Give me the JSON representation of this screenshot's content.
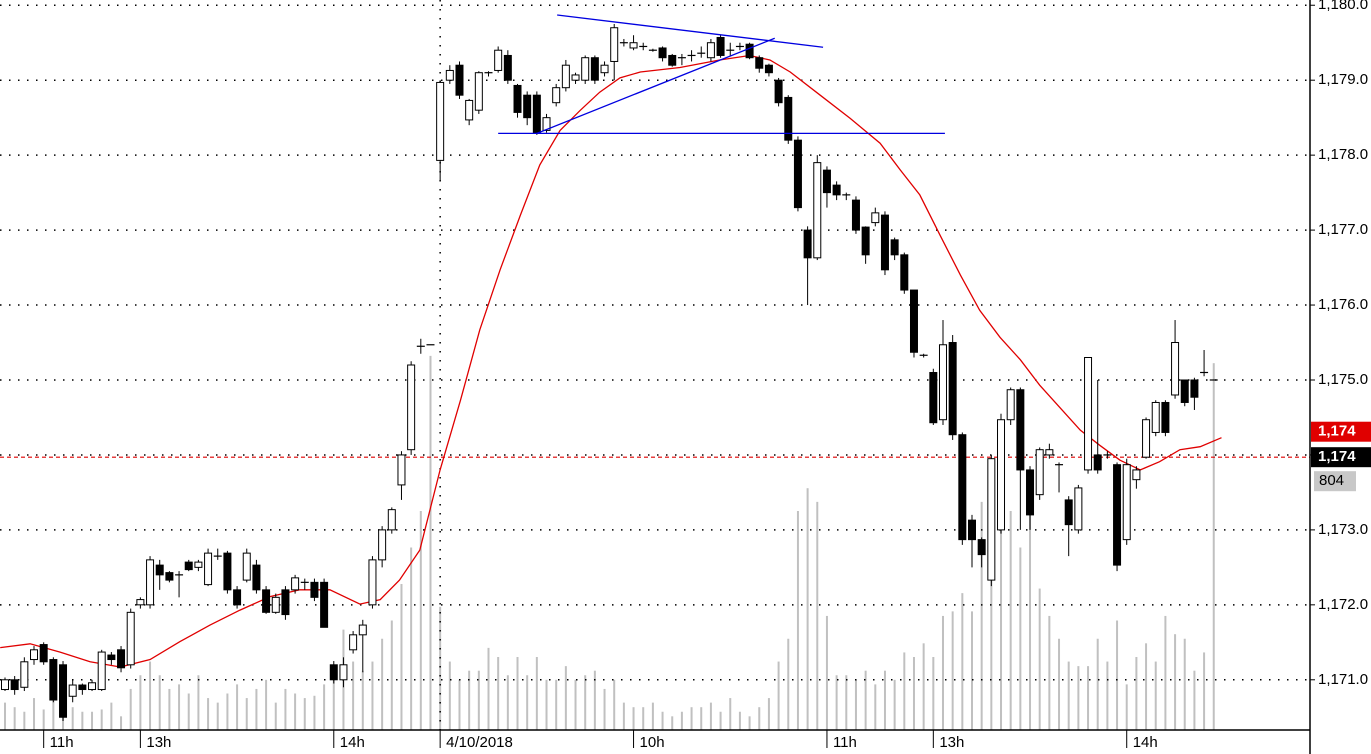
{
  "chart_data": {
    "type": "candlestick",
    "categories": [
      null,
      null,
      null,
      null,
      "11h",
      null,
      null,
      null,
      null,
      null,
      null,
      null,
      null,
      null,
      "13h",
      null,
      null,
      null,
      null,
      null,
      null,
      null,
      null,
      null,
      null,
      null,
      null,
      null,
      null,
      null,
      null,
      null,
      null,
      null,
      "14h",
      null,
      null,
      null,
      null,
      null,
      null,
      null,
      null,
      null,
      null,
      "4/10/2018",
      null,
      null,
      null,
      null,
      null,
      null,
      null,
      null,
      null,
      null,
      null,
      null,
      null,
      null,
      null,
      null,
      null,
      null,
      null,
      "10h",
      null,
      null,
      null,
      null,
      null,
      null,
      null,
      null,
      null,
      null,
      null,
      null,
      null,
      null,
      null,
      null,
      null,
      null,
      null,
      "11h",
      null,
      null,
      null,
      null,
      null,
      null,
      null,
      null,
      null,
      null,
      "13h",
      null,
      null,
      null,
      null,
      null,
      null,
      null,
      null,
      null,
      null,
      null,
      null,
      null,
      null,
      null,
      null,
      null,
      null,
      null,
      "14h",
      null,
      null,
      null,
      null,
      null,
      null,
      null,
      null,
      null
    ],
    "open": [
      1170.87,
      1171.0,
      1170.9,
      1171.27,
      1171.47,
      1171.27,
      1171.2,
      1170.78,
      1170.93,
      1170.87,
      1170.87,
      1171.33,
      1171.4,
      1171.2,
      1172.0,
      1172.0,
      1172.53,
      1172.43,
      1172.4,
      1172.57,
      1172.5,
      1172.27,
      1172.65,
      1172.69,
      1172.2,
      1172.33,
      1172.53,
      1172.2,
      1171.9,
      1172.2,
      1172.2,
      1172.3,
      1172.3,
      1172.3,
      1171.2,
      1171.0,
      1171.4,
      1171.6,
      1172.0,
      1172.6,
      1173.0,
      1173.6,
      1174.07,
      1175.45,
      1175.47,
      1177.93,
      1179.0,
      1179.2,
      1178.47,
      1178.6,
      1179.1,
      1179.13,
      1179.33,
      1178.93,
      1178.8,
      1178.8,
      1178.33,
      1178.7,
      1178.9,
      1179.0,
      1179.0,
      1179.3,
      1179.1,
      1179.25,
      1179.5,
      1179.43,
      1179.45,
      1179.4,
      1179.43,
      1179.33,
      1179.3,
      1179.33,
      1179.36,
      1179.3,
      1179.57,
      1179.4,
      1179.45,
      1179.48,
      1179.3,
      1179.2,
      1179.0,
      1178.77,
      1178.2,
      1177.0,
      1176.63,
      1177.8,
      1177.6,
      1177.47,
      1177.4,
      1177.04,
      1177.1,
      1177.2,
      1176.87,
      1176.67,
      1176.2,
      1175.33,
      1175.1,
      1174.47,
      1175.5,
      1174.27,
      1173.13,
      1172.87,
      1172.33,
      1173.0,
      1174.47,
      1174.87,
      1173.8,
      1173.47,
      1174.0,
      1173.87,
      1173.4,
      1173.0,
      1173.8,
      1174.0,
      1174.0,
      1173.87,
      1172.87,
      1173.67,
      1173.97,
      1174.3,
      1174.7,
      1174.8,
      1175.0,
      1175.0,
      1175.1,
      1175.0
    ],
    "high": [
      1171.03,
      1171.05,
      1171.3,
      1171.45,
      1171.5,
      1171.3,
      1171.25,
      1171.0,
      1170.95,
      1171.0,
      1171.4,
      1171.37,
      1171.45,
      1171.95,
      1172.1,
      1172.65,
      1172.6,
      1172.45,
      1172.45,
      1172.6,
      1172.6,
      1172.75,
      1172.75,
      1172.72,
      1172.25,
      1172.75,
      1172.6,
      1172.25,
      1172.15,
      1172.25,
      1172.4,
      1172.35,
      1172.35,
      1172.35,
      1171.25,
      1171.3,
      1171.65,
      1171.8,
      1172.65,
      1173.05,
      1173.3,
      1174.05,
      1175.25,
      1175.55,
      1175.47,
      1179.0,
      1179.2,
      1179.25,
      1178.75,
      1179.12,
      1179.12,
      1179.45,
      1179.4,
      1178.95,
      1178.85,
      1178.85,
      1178.55,
      1178.95,
      1179.27,
      1179.1,
      1179.33,
      1179.33,
      1179.25,
      1179.75,
      1179.55,
      1179.6,
      1179.5,
      1179.42,
      1179.45,
      1179.35,
      1179.35,
      1179.4,
      1179.45,
      1179.55,
      1179.6,
      1179.5,
      1179.5,
      1179.5,
      1179.33,
      1179.22,
      1179.03,
      1178.8,
      1178.25,
      1177.05,
      1178.0,
      1177.85,
      1177.65,
      1177.5,
      1177.45,
      1177.05,
      1177.3,
      1177.25,
      1176.9,
      1176.7,
      1176.2,
      1175.35,
      1175.15,
      1175.8,
      1175.6,
      1174.3,
      1173.2,
      1172.9,
      1174.0,
      1174.55,
      1174.9,
      1174.9,
      1173.85,
      1174.1,
      1174.15,
      1173.9,
      1173.45,
      1173.6,
      1175.3,
      1175.0,
      1174.05,
      1173.9,
      1173.95,
      1173.85,
      1174.5,
      1174.73,
      1174.73,
      1175.8,
      1175.0,
      1175.03,
      1175.4,
      1175.0
    ],
    "low": [
      1170.85,
      1170.8,
      1170.85,
      1171.2,
      1171.2,
      1170.7,
      1170.45,
      1170.7,
      1170.8,
      1170.85,
      1170.85,
      1171.2,
      1171.1,
      1171.15,
      1171.95,
      1171.95,
      1172.2,
      1172.3,
      1172.1,
      1172.45,
      1172.45,
      1172.25,
      1172.6,
      1172.15,
      1171.95,
      1172.3,
      1172.15,
      1171.88,
      1171.88,
      1171.8,
      1172.15,
      1172.2,
      1172.05,
      1171.7,
      1170.95,
      1170.9,
      1171.35,
      1171.1,
      1171.95,
      1172.5,
      1172.95,
      1173.4,
      1174.0,
      1175.35,
      1175.47,
      1177.65,
      1178.95,
      1178.75,
      1178.4,
      1178.55,
      1179.05,
      1179.1,
      1178.95,
      1178.5,
      1178.4,
      1178.27,
      1178.3,
      1178.65,
      1178.85,
      1178.95,
      1178.95,
      1178.95,
      1179.05,
      1179.0,
      1179.45,
      1179.4,
      1179.4,
      1179.38,
      1179.25,
      1179.18,
      1179.2,
      1179.25,
      1179.3,
      1179.25,
      1179.3,
      1179.33,
      1179.4,
      1179.28,
      1179.1,
      1179.05,
      1178.65,
      1178.15,
      1177.25,
      1176.0,
      1176.6,
      1177.3,
      1177.4,
      1177.4,
      1176.95,
      1176.55,
      1177.05,
      1176.4,
      1176.6,
      1176.15,
      1175.3,
      1175.3,
      1174.4,
      1174.4,
      1174.2,
      1172.8,
      1172.5,
      1172.5,
      1172.25,
      1172.95,
      1174.4,
      1173.0,
      1173.0,
      1173.4,
      1173.95,
      1173.5,
      1172.65,
      1172.95,
      1173.75,
      1173.75,
      1173.95,
      1172.45,
      1172.8,
      1173.55,
      1173.95,
      1174.25,
      1174.25,
      1174.75,
      1174.65,
      1174.6,
      1175.05,
      1175.0
    ],
    "close": [
      1171.0,
      1170.87,
      1171.24,
      1171.4,
      1171.24,
      1170.73,
      1170.5,
      1170.93,
      1170.87,
      1170.96,
      1171.37,
      1171.27,
      1171.16,
      1171.9,
      1172.07,
      1172.6,
      1172.4,
      1172.33,
      1172.4,
      1172.47,
      1172.57,
      1172.69,
      1172.65,
      1172.2,
      1172.0,
      1172.69,
      1172.2,
      1171.9,
      1172.1,
      1171.87,
      1172.36,
      1172.3,
      1172.1,
      1171.7,
      1171.0,
      1171.2,
      1171.6,
      1171.73,
      1172.6,
      1173.0,
      1173.27,
      1174.0,
      1175.2,
      1175.45,
      1175.47,
      1178.97,
      1179.13,
      1178.8,
      1178.73,
      1179.1,
      1179.1,
      1179.4,
      1179.0,
      1178.57,
      1178.5,
      1178.3,
      1178.5,
      1178.9,
      1179.2,
      1179.07,
      1179.3,
      1179.0,
      1179.2,
      1179.7,
      1179.5,
      1179.5,
      1179.45,
      1179.4,
      1179.3,
      1179.2,
      1179.3,
      1179.33,
      1179.36,
      1179.5,
      1179.33,
      1179.4,
      1179.45,
      1179.3,
      1179.16,
      1179.1,
      1178.7,
      1178.2,
      1177.3,
      1176.63,
      1177.9,
      1177.5,
      1177.47,
      1177.47,
      1177.0,
      1176.67,
      1177.23,
      1176.47,
      1176.67,
      1176.2,
      1175.37,
      1175.33,
      1174.43,
      1175.47,
      1174.27,
      1172.87,
      1172.87,
      1172.67,
      1173.95,
      1174.47,
      1174.87,
      1173.8,
      1173.2,
      1174.07,
      1174.07,
      1173.87,
      1173.07,
      1173.56,
      1175.3,
      1173.8,
      1174.0,
      1172.53,
      1173.87,
      1173.8,
      1174.47,
      1174.7,
      1174.3,
      1175.5,
      1174.7,
      1174.77,
      1175.1,
      1175.0
    ],
    "volume": [
      60,
      50,
      40,
      70,
      45,
      80,
      90,
      50,
      40,
      40,
      45,
      60,
      30,
      90,
      120,
      150,
      120,
      90,
      100,
      80,
      120,
      70,
      60,
      80,
      100,
      70,
      90,
      110,
      60,
      90,
      80,
      70,
      75,
      100,
      110,
      220,
      150,
      130,
      150,
      200,
      240,
      320,
      400,
      480,
      820,
      270,
      150,
      110,
      130,
      130,
      180,
      160,
      120,
      160,
      120,
      160,
      110,
      110,
      140,
      110,
      120,
      130,
      90,
      110,
      60,
      50,
      50,
      60,
      40,
      30,
      40,
      50,
      50,
      60,
      40,
      70,
      40,
      30,
      50,
      70,
      150,
      200,
      480,
      530,
      500,
      250,
      120,
      120,
      110,
      130,
      100,
      130,
      110,
      170,
      160,
      190,
      160,
      250,
      260,
      300,
      260,
      500,
      520,
      450,
      480,
      400,
      480,
      310,
      250,
      200,
      150,
      140,
      140,
      200,
      150,
      240,
      100,
      160,
      190,
      150,
      250,
      210,
      200,
      130,
      170,
      804
    ],
    "volume_color": "#c0c0c0",
    "vlim": [
      0,
      1600
    ],
    "volume_label": "804",
    "moving_average": {
      "color": "#e00000",
      "x": [
        -0.5,
        2.6,
        5.7,
        8.8,
        11.9,
        15.0,
        18.1,
        21.2,
        24.3,
        27.4,
        30.5,
        33.6,
        36.7,
        38.8,
        40.8,
        42.9,
        45.0,
        47.1,
        49.1,
        51.2,
        53.3,
        55.3,
        57.4,
        59.5,
        61.5,
        63.6,
        65.7,
        69.8,
        73.9,
        77.0,
        79.1,
        81.2,
        84.3,
        87.4,
        90.5,
        92.6,
        94.6,
        96.7,
        98.8,
        100.8,
        102.9,
        105.0,
        107.0,
        109.1,
        111.2,
        113.2,
        115.3,
        117.4,
        119.4,
        121.5,
        123.6,
        125.8
      ],
      "values": [
        1171.43,
        1171.48,
        1171.37,
        1171.24,
        1171.17,
        1171.27,
        1171.51,
        1171.73,
        1171.93,
        1172.11,
        1172.2,
        1172.2,
        1172.01,
        1172.07,
        1172.33,
        1172.73,
        1173.8,
        1174.73,
        1175.67,
        1176.47,
        1177.2,
        1177.87,
        1178.33,
        1178.6,
        1178.84,
        1179.03,
        1179.11,
        1179.17,
        1179.27,
        1179.33,
        1179.27,
        1179.11,
        1178.8,
        1178.49,
        1178.16,
        1177.8,
        1177.47,
        1176.93,
        1176.4,
        1175.93,
        1175.57,
        1175.27,
        1174.93,
        1174.63,
        1174.33,
        1174.13,
        1173.93,
        1173.8,
        1173.91,
        1174.07,
        1174.11,
        1174.23
      ]
    },
    "trend_lines": [
      {
        "color": "#0000e0",
        "x": [
          57.1,
          84.6
        ],
        "values": [
          1179.87,
          1179.44
        ]
      },
      {
        "color": "#0000e0",
        "x": [
          55.0,
          79.6
        ],
        "values": [
          1178.29,
          1179.56
        ]
      },
      {
        "color": "#0000e0",
        "x": [
          51.0,
          97.2
        ],
        "values": [
          1178.29,
          1178.29
        ]
      }
    ],
    "price_markers": [
      {
        "label": "1,174",
        "value": 1174.31,
        "color": "#e00000"
      },
      {
        "label": "1,174",
        "value": 1173.97,
        "color": "#000000"
      }
    ],
    "current_price_line": {
      "value": 1173.97,
      "color": "#e00000"
    },
    "up_color": "#ffffff",
    "down_color": "#000000",
    "ylim": [
      1170.33,
      1180.07
    ],
    "yticks": [
      {
        "value": 1171,
        "label": "1,171.0"
      },
      {
        "value": 1172,
        "label": "1,172.0"
      },
      {
        "value": 1173,
        "label": "1,173.0"
      },
      {
        "value": 1174,
        "label": "1,174.0"
      },
      {
        "value": 1175,
        "label": "1,175.0"
      },
      {
        "value": 1176,
        "label": "1,176.0"
      },
      {
        "value": 1177,
        "label": "1,177.0"
      },
      {
        "value": 1178,
        "label": "1,178.0"
      },
      {
        "value": 1179,
        "label": "1,179.0"
      },
      {
        "value": 1180,
        "label": "1,180.0"
      }
    ],
    "grid": true,
    "xgrid": [
      45
    ],
    "axis_side": "right"
  }
}
